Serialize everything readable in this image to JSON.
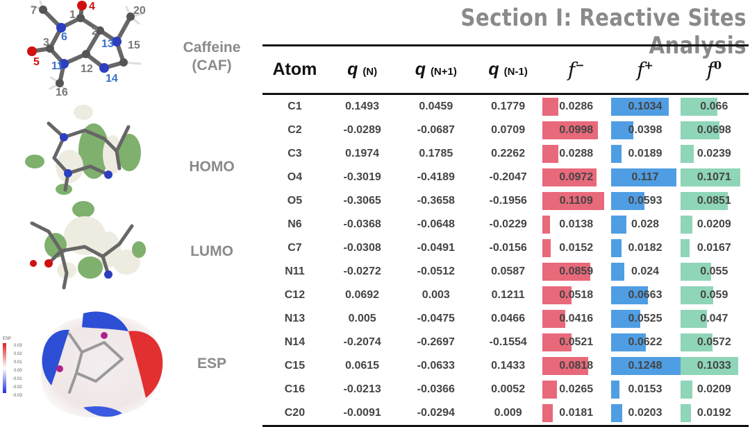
{
  "title": "Section I: Reactive Sites Analysis",
  "structure": {
    "name_line1": "Caffeine",
    "name_line2": "(CAF)",
    "atom_labels": [
      {
        "text": "7",
        "kind": "gray"
      },
      {
        "text": "1",
        "kind": "gray"
      },
      {
        "text": "4",
        "kind": "red"
      },
      {
        "text": "20",
        "kind": "gray"
      },
      {
        "text": "6",
        "kind": "blue"
      },
      {
        "text": "2",
        "kind": "gray"
      },
      {
        "text": "3",
        "kind": "gray"
      },
      {
        "text": "13",
        "kind": "blue"
      },
      {
        "text": "15",
        "kind": "gray"
      },
      {
        "text": "5",
        "kind": "red"
      },
      {
        "text": "11",
        "kind": "blue"
      },
      {
        "text": "12",
        "kind": "gray"
      },
      {
        "text": "14",
        "kind": "blue"
      },
      {
        "text": "16",
        "kind": "gray"
      }
    ]
  },
  "panels": {
    "homo": "HOMO",
    "lumo": "LUMO",
    "esp": "ESP"
  },
  "esp_scale": {
    "label": "ESP",
    "ticks": [
      "0.03",
      "0.02",
      "0.01",
      "0.00",
      "-0.01",
      "-0.02",
      "-0.03"
    ]
  },
  "colors": {
    "f_minus": "#e8697a",
    "f_plus": "#4f9ee3",
    "f_zero": "#8fd5b8",
    "title": "#8a8a8a"
  },
  "table": {
    "headers": {
      "atom": "Atom",
      "q": "q",
      "q_sub": "(N)",
      "qp": "q",
      "qp_sub": "(N+1)",
      "qm": "q",
      "qm_sub": "(N-1)",
      "fm": "f",
      "fm_sup": "−",
      "fp": "f",
      "fp_sup": "+",
      "f0": "f",
      "f0_sup": "0"
    },
    "rows": [
      {
        "atom": "C1",
        "q": "0.1493",
        "qp": "0.0459",
        "qm": "0.1779",
        "fm": "0.0286",
        "fp": "0.1034",
        "f0": "0.066"
      },
      {
        "atom": "C2",
        "q": "-0.0289",
        "qp": "-0.0687",
        "qm": "0.0709",
        "fm": "0.0998",
        "fp": "0.0398",
        "f0": "0.0698"
      },
      {
        "atom": "C3",
        "q": "0.1974",
        "qp": "0.1785",
        "qm": "0.2262",
        "fm": "0.0288",
        "fp": "0.0189",
        "f0": "0.0239"
      },
      {
        "atom": "O4",
        "q": "-0.3019",
        "qp": "-0.4189",
        "qm": "-0.2047",
        "fm": "0.0972",
        "fp": "0.117",
        "f0": "0.1071"
      },
      {
        "atom": "O5",
        "q": "-0.3065",
        "qp": "-0.3658",
        "qm": "-0.1956",
        "fm": "0.1109",
        "fp": "0.0593",
        "f0": "0.0851"
      },
      {
        "atom": "N6",
        "q": "-0.0368",
        "qp": "-0.0648",
        "qm": "-0.0229",
        "fm": "0.0138",
        "fp": "0.028",
        "f0": "0.0209"
      },
      {
        "atom": "C7",
        "q": "-0.0308",
        "qp": "-0.0491",
        "qm": "-0.0156",
        "fm": "0.0152",
        "fp": "0.0182",
        "f0": "0.0167"
      },
      {
        "atom": "N11",
        "q": "-0.0272",
        "qp": "-0.0512",
        "qm": "0.0587",
        "fm": "0.0859",
        "fp": "0.024",
        "f0": "0.055"
      },
      {
        "atom": "C12",
        "q": "0.0692",
        "qp": "0.003",
        "qm": "0.1211",
        "fm": "0.0518",
        "fp": "0.0663",
        "f0": "0.059"
      },
      {
        "atom": "N13",
        "q": "0.005",
        "qp": "-0.0475",
        "qm": "0.0466",
        "fm": "0.0416",
        "fp": "0.0525",
        "f0": "0.047"
      },
      {
        "atom": "N14",
        "q": "-0.2074",
        "qp": "-0.2697",
        "qm": "-0.1554",
        "fm": "0.0521",
        "fp": "0.0622",
        "f0": "0.0572"
      },
      {
        "atom": "C15",
        "q": "0.0615",
        "qp": "-0.0633",
        "qm": "0.1433",
        "fm": "0.0818",
        "fp": "0.1248",
        "f0": "0.1033"
      },
      {
        "atom": "C16",
        "q": "-0.0213",
        "qp": "-0.0366",
        "qm": "0.0052",
        "fm": "0.0265",
        "fp": "0.0153",
        "f0": "0.0209"
      },
      {
        "atom": "C20",
        "q": "-0.0091",
        "qp": "-0.0294",
        "qm": "0.009",
        "fm": "0.0181",
        "fp": "0.0203",
        "f0": "0.0192"
      }
    ]
  }
}
